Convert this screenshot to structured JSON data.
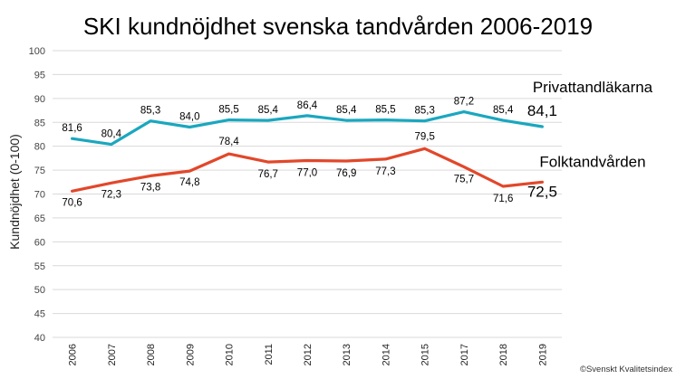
{
  "chart_data": {
    "type": "line",
    "title": "SKI kundnöjdhet svenska tandvården 2006-2019",
    "xlabel": "",
    "ylabel": "Kundnöjdhet (0-100)",
    "ylim": [
      40,
      100
    ],
    "yticks": [
      "40",
      "45",
      "50",
      "55",
      "60",
      "65",
      "70",
      "75",
      "80",
      "85",
      "90",
      "95",
      "100"
    ],
    "categories": [
      "2006",
      "2007",
      "2008",
      "2009",
      "2010",
      "2011",
      "2012",
      "2013",
      "2014",
      "2015",
      "2017",
      "2018",
      "2019"
    ],
    "grid": true,
    "series": [
      {
        "name": "Privattandläkarna",
        "color": "#1aa7bf",
        "values": [
          81.6,
          80.4,
          85.3,
          84.0,
          85.5,
          85.4,
          86.4,
          85.4,
          85.5,
          85.3,
          87.2,
          85.4,
          84.1
        ],
        "labels": [
          "81,6",
          "80,4",
          "85,3",
          "84,0",
          "85,5",
          "85,4",
          "86,4",
          "85,4",
          "85,5",
          "85,3",
          "87,2",
          "85,4",
          "84,1"
        ]
      },
      {
        "name": "Folktandvården",
        "color": "#e2472a",
        "values": [
          70.6,
          72.3,
          73.8,
          74.8,
          78.4,
          76.7,
          77.0,
          76.9,
          77.3,
          79.5,
          75.7,
          71.6,
          72.5
        ],
        "labels": [
          "70,6",
          "72,3",
          "73,8",
          "74,8",
          "78,4",
          "76,7",
          "77,0",
          "76,9",
          "77,3",
          "79,5",
          "75,7",
          "71,6",
          "72,5"
        ]
      }
    ],
    "source": "©Svenskt Kvalitetsindex"
  }
}
